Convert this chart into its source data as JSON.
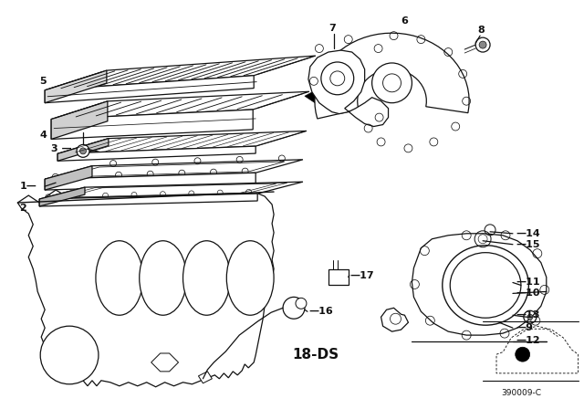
{
  "background_color": "#ffffff",
  "fig_width": 6.4,
  "fig_height": 4.48,
  "dpi": 100,
  "line_color": "#111111",
  "label_fontsize": 8.0,
  "diagram_code": "390009-C"
}
